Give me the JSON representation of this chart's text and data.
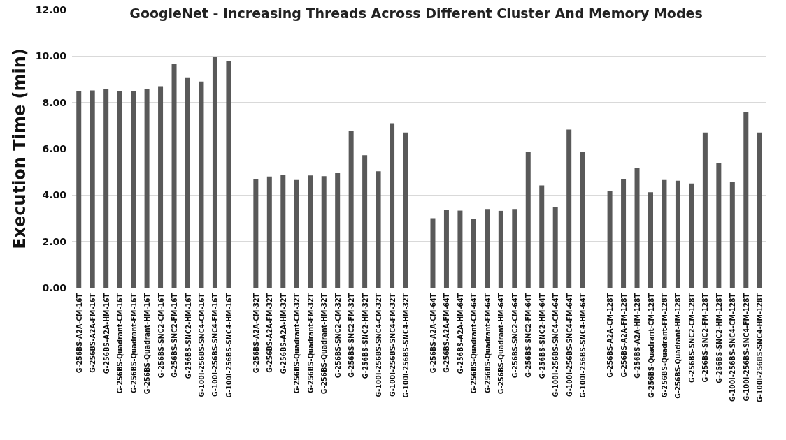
{
  "chart_data": {
    "type": "bar",
    "title": "GoogleNet - Increasing Threads Across Different Cluster And Memory Modes",
    "ylabel": "Execution Time (min)",
    "categories": [
      "G-256BS-A2A-CM-16T",
      "G-256BS-A2A-FM-16T",
      "G-256BS-A2A-HM-16T",
      "G-256BS-Quadrant-CM-16T",
      "G-256BS-Quadrant-FM-16T",
      "G-256BS-Quadrant-HM-16T",
      "G-256BS-SNC2-CM-16T",
      "G-256BS-SNC2-FM-16T",
      "G-256BS-SNC2-HM-16T",
      "G-100I-256BS-SNC4-CM-16T",
      "G-100I-256BS-SNC4-FM-16T",
      "G-100I-256BS-SNC4-HM-16T",
      null,
      "G-256BS-A2A-CM-32T",
      "G-256BS-A2A-FM-32T",
      "G-256BS-A2A-HM-32T",
      "G-256BS-Quadrant-CM-32T",
      "G-256BS-Quadrant-FM-32T",
      "G-256BS-Quadrant-HM-32T",
      "G-256BS-SNC2-CM-32T",
      "G-256BS-SNC2-FM-32T",
      "G-256BS-SNC2-HM-32T",
      "G-100I-256BS-SNC4-CM-32T",
      "G-100I-256BS-SNC4-FM-32T",
      "G-100I-256BS-SNC4-HM-32T",
      null,
      "G-256BS-A2A-CM-64T",
      "G-256BS-A2A-FM-64T",
      "G-256BS-A2A-HM-64T",
      "G-256BS-Quadrant-CM-64T",
      "G-256BS-Quadrant-FM-64T",
      "G-256BS-Quadrant-HM-64T",
      "G-256BS-SNC2-CM-64T",
      "G-256BS-SNC2-FM-64T",
      "G-256BS-SNC2-HM-64T",
      "G-100I-256BS-SNC4-CM-64T",
      "G-100I-256BS-SNC4-FM-64T",
      "G-100I-256BS-SNC4-HM-64T",
      null,
      "G-256BS-A2A-CM-128T",
      "G-256BS-A2A-FM-128T",
      "G-256BS-A2A-HM-128T",
      "G-256BS-Quadrant-CM-128T",
      "G-256BS-Quadrant-FM-128T",
      "G-256BS-Quadrant-HM-128T",
      "G-256BS-SNC2-CM-128T",
      "G-256BS-SNC2-FM-128T",
      "G-256BS-SNC2-HM-128T",
      "G-100I-256BS-SNC4-CM-128T",
      "G-100I-256BS-SNC4-FM-128T",
      "G-100I-256BS-SNC4-HM-128T"
    ],
    "values": [
      8.5,
      8.52,
      8.57,
      8.47,
      8.5,
      8.57,
      8.7,
      9.68,
      9.08,
      8.9,
      9.95,
      9.78,
      null,
      4.7,
      4.8,
      4.87,
      4.65,
      4.85,
      4.82,
      4.97,
      6.77,
      5.72,
      5.03,
      7.1,
      6.7,
      null,
      3.0,
      3.35,
      3.33,
      2.97,
      3.4,
      3.32,
      3.4,
      5.85,
      4.42,
      3.48,
      6.83,
      5.85,
      null,
      4.17,
      4.7,
      5.17,
      4.12,
      4.65,
      4.62,
      4.5,
      6.7,
      5.4,
      4.55,
      7.57,
      6.7
    ],
    "color": "#595959",
    "ylim": [
      0,
      12
    ],
    "yticks": [
      {
        "value": 0,
        "label": "0.00"
      },
      {
        "value": 2,
        "label": "2.00"
      },
      {
        "value": 4,
        "label": "4.00"
      },
      {
        "value": 6,
        "label": "6.00"
      },
      {
        "value": 8,
        "label": "8.00"
      },
      {
        "value": 10,
        "label": "10.00"
      },
      {
        "value": 12,
        "label": "12.00"
      }
    ],
    "grid": true
  }
}
